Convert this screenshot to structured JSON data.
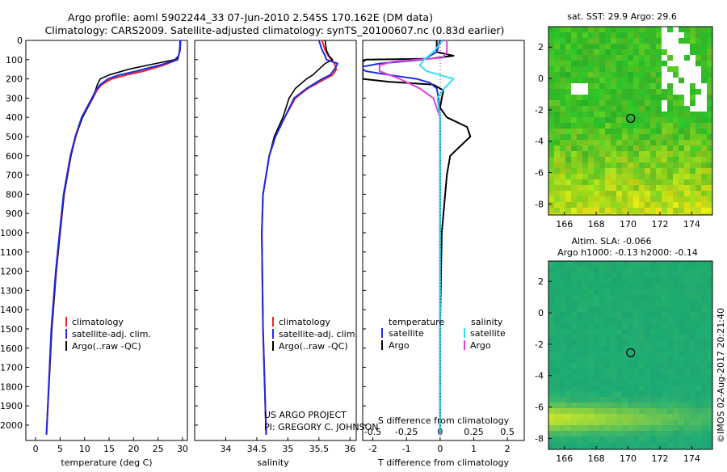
{
  "colors": {
    "climatology": "#e8262b",
    "satellite": "#1f2be0",
    "argo": "#000000",
    "salinity_satellite": "#33e0f0",
    "salinity_argo": "#e040e0"
  },
  "header": {
    "title_line1": "Argo profile: aoml 5902244_33 07-Jun-2010 2.545S 170.162E (DM data)",
    "title_line2": "Climatology: CARS2009. Satellite-adjusted climatology: synTS_20100607.nc (0.83d earlier)"
  },
  "credit": {
    "project": "US ARGO PROJECT",
    "pi": "PI: GREGORY C. JOHNSON",
    "stamp": "©IMOS 02-Aug-2017 20:21:40"
  },
  "chart_data": [
    {
      "id": "temperature",
      "type": "line",
      "xlabel": "temperature (deg C)",
      "ylabel": "depth",
      "xlim": [
        -2,
        31
      ],
      "ylim": [
        2080,
        0
      ],
      "xticks": [
        0,
        5,
        10,
        15,
        20,
        25,
        30
      ],
      "yticks": [
        0,
        100,
        200,
        300,
        400,
        500,
        600,
        700,
        800,
        900,
        1000,
        1100,
        1200,
        1300,
        1400,
        1500,
        1600,
        1700,
        1800,
        1900,
        2000
      ],
      "legend": [
        "climatology",
        "satellite-adj. clim.",
        "Argo(..raw -QC)"
      ],
      "series": [
        {
          "name": "climatology",
          "depth": [
            0,
            50,
            100,
            130,
            160,
            180,
            200,
            230,
            260,
            300,
            400,
            500,
            600,
            800,
            1000,
            1200,
            1500,
            2000,
            2050
          ],
          "values": [
            29.6,
            29.5,
            29.0,
            26.0,
            22.0,
            18.5,
            15.5,
            13.5,
            12.5,
            11.7,
            9.5,
            8.2,
            7.2,
            5.8,
            5.0,
            4.2,
            3.3,
            2.3,
            2.2
          ]
        },
        {
          "name": "satellite",
          "depth": [
            0,
            50,
            100,
            130,
            160,
            180,
            200,
            230,
            260,
            300,
            400,
            500,
            600,
            800,
            1000,
            1200,
            1500,
            2000,
            2050
          ],
          "values": [
            29.6,
            29.5,
            29.0,
            25.2,
            20.5,
            17.0,
            14.8,
            13.2,
            12.3,
            11.5,
            9.4,
            8.1,
            7.1,
            5.7,
            4.9,
            4.1,
            3.2,
            2.3,
            2.2
          ]
        },
        {
          "name": "argo",
          "depth": [
            0,
            50,
            80,
            100,
            120,
            150,
            180,
            200,
            230,
            260,
            300,
            400,
            500,
            600,
            800,
            1000,
            1200,
            1500,
            2000,
            2050
          ],
          "values": [
            29.5,
            29.4,
            29.2,
            28.5,
            24.5,
            19.0,
            15.0,
            13.2,
            12.6,
            12.2,
            11.6,
            9.6,
            8.1,
            7.2,
            5.8,
            5.0,
            4.2,
            3.3,
            2.3,
            2.2
          ]
        }
      ]
    },
    {
      "id": "salinity",
      "type": "line",
      "xlabel": "salinity",
      "ylabel": "depth",
      "xlim": [
        33.5,
        36.1
      ],
      "ylim": [
        2080,
        0
      ],
      "xticks": [
        34,
        34.5,
        35,
        35.5,
        36
      ],
      "legend": [
        "climatology",
        "satellite-adj. clim.",
        "Argo(..raw -QC)"
      ],
      "series": [
        {
          "name": "climatology",
          "depth": [
            0,
            50,
            80,
            100,
            120,
            150,
            180,
            200,
            250,
            300,
            400,
            500,
            600,
            800,
            1000,
            1500,
            2050
          ],
          "values": [
            35.55,
            35.6,
            35.65,
            35.7,
            35.75,
            35.78,
            35.72,
            35.6,
            35.32,
            35.12,
            34.95,
            34.8,
            34.7,
            34.6,
            34.58,
            34.6,
            34.65
          ]
        },
        {
          "name": "satellite",
          "depth": [
            0,
            50,
            80,
            100,
            120,
            150,
            180,
            200,
            250,
            300,
            400,
            500,
            600,
            800,
            1000,
            1500,
            2050
          ],
          "values": [
            35.5,
            35.55,
            35.6,
            35.62,
            35.8,
            35.75,
            35.68,
            35.55,
            35.3,
            35.1,
            34.95,
            34.8,
            34.7,
            34.6,
            34.58,
            34.6,
            34.65
          ]
        },
        {
          "name": "argo",
          "depth": [
            0,
            50,
            80,
            100,
            120,
            150,
            180,
            200,
            250,
            300,
            400,
            500,
            600,
            800,
            1000,
            1500,
            2050
          ],
          "values": [
            35.6,
            35.62,
            35.66,
            35.72,
            35.6,
            35.5,
            35.4,
            35.3,
            35.12,
            35.02,
            34.92,
            34.78,
            34.7,
            34.6,
            34.58,
            34.6,
            34.65
          ]
        }
      ]
    },
    {
      "id": "difference",
      "type": "line",
      "xlabel_top": "S difference from climatology",
      "xlabel": "T difference from climatology",
      "xlim": [
        -2.3,
        2.5
      ],
      "ylim": [
        2080,
        0
      ],
      "xticks_bottom": [
        -2,
        -1,
        0,
        1,
        2
      ],
      "xticks_top": [
        -0.5,
        -0.25,
        0,
        0.25,
        0.5
      ],
      "legend_temperature_title": "temperature",
      "legend_salinity_title": "salinity",
      "legend_items": [
        "satellite",
        "Argo"
      ],
      "series": [
        {
          "name": "temperature satellite",
          "depth": [
            0,
            60,
            100,
            120,
            140,
            160,
            180,
            200,
            220,
            250,
            300,
            400,
            600,
            1000,
            2050
          ],
          "values": [
            0,
            -0.1,
            -0.5,
            -1.8,
            -2.4,
            -2.2,
            -1.5,
            -0.7,
            -0.3,
            -0.1,
            -0.05,
            0,
            0,
            0,
            0
          ]
        },
        {
          "name": "temperature argo",
          "depth": [
            0,
            60,
            80,
            95,
            100,
            110,
            130,
            200,
            215,
            230,
            260,
            300,
            350,
            400,
            450,
            500,
            550,
            600,
            700,
            800,
            900,
            1000,
            1500,
            2050
          ],
          "values": [
            -0.1,
            -0.1,
            0.4,
            -0.3,
            -2.2,
            -2.3,
            -2.3,
            -2.3,
            -1.5,
            -0.2,
            0.1,
            0.05,
            0.0,
            0.2,
            0.8,
            0.9,
            0.6,
            0.3,
            0.2,
            0.15,
            0.1,
            0.05,
            0,
            0
          ]
        },
        {
          "name": "salinity satellite",
          "depth": [
            0,
            60,
            100,
            130,
            160,
            200,
            250,
            300,
            400,
            1000,
            2050
          ],
          "values": [
            0.02,
            -0.05,
            -0.12,
            -0.15,
            -0.1,
            0.1,
            0.03,
            -0.02,
            0,
            0,
            0
          ]
        },
        {
          "name": "salinity argo",
          "depth": [
            0,
            60,
            90,
            110,
            130,
            160,
            200,
            250,
            300,
            400,
            1000,
            2050
          ],
          "values": [
            0.05,
            0.05,
            0.02,
            -0.35,
            -0.45,
            -0.45,
            -0.3,
            -0.15,
            -0.05,
            0,
            0,
            0
          ]
        }
      ]
    },
    {
      "id": "sst_map",
      "type": "heatmap",
      "title": "sat. SST: 29.9  Argo: 29.6",
      "xlim": [
        165,
        175.3
      ],
      "ylim": [
        -8.7,
        3.3
      ],
      "xticks": [
        166,
        168,
        170,
        172,
        174
      ],
      "yticks": [
        2,
        0,
        -2,
        -4,
        -6,
        -8
      ],
      "argo_position": {
        "lon": 170.162,
        "lat": -2.545
      }
    },
    {
      "id": "sla_map",
      "type": "heatmap",
      "title": "Altim. SLA: -0.066",
      "subtitle": "Argo h1000: -0.13 h2000: -0.14",
      "xlim": [
        165,
        175.3
      ],
      "ylim": [
        -8.7,
        3.3
      ],
      "xticks": [
        166,
        168,
        170,
        172,
        174
      ],
      "yticks": [
        2,
        0,
        -2,
        -4,
        -6,
        -8
      ],
      "argo_position": {
        "lon": 170.162,
        "lat": -2.545
      }
    }
  ]
}
